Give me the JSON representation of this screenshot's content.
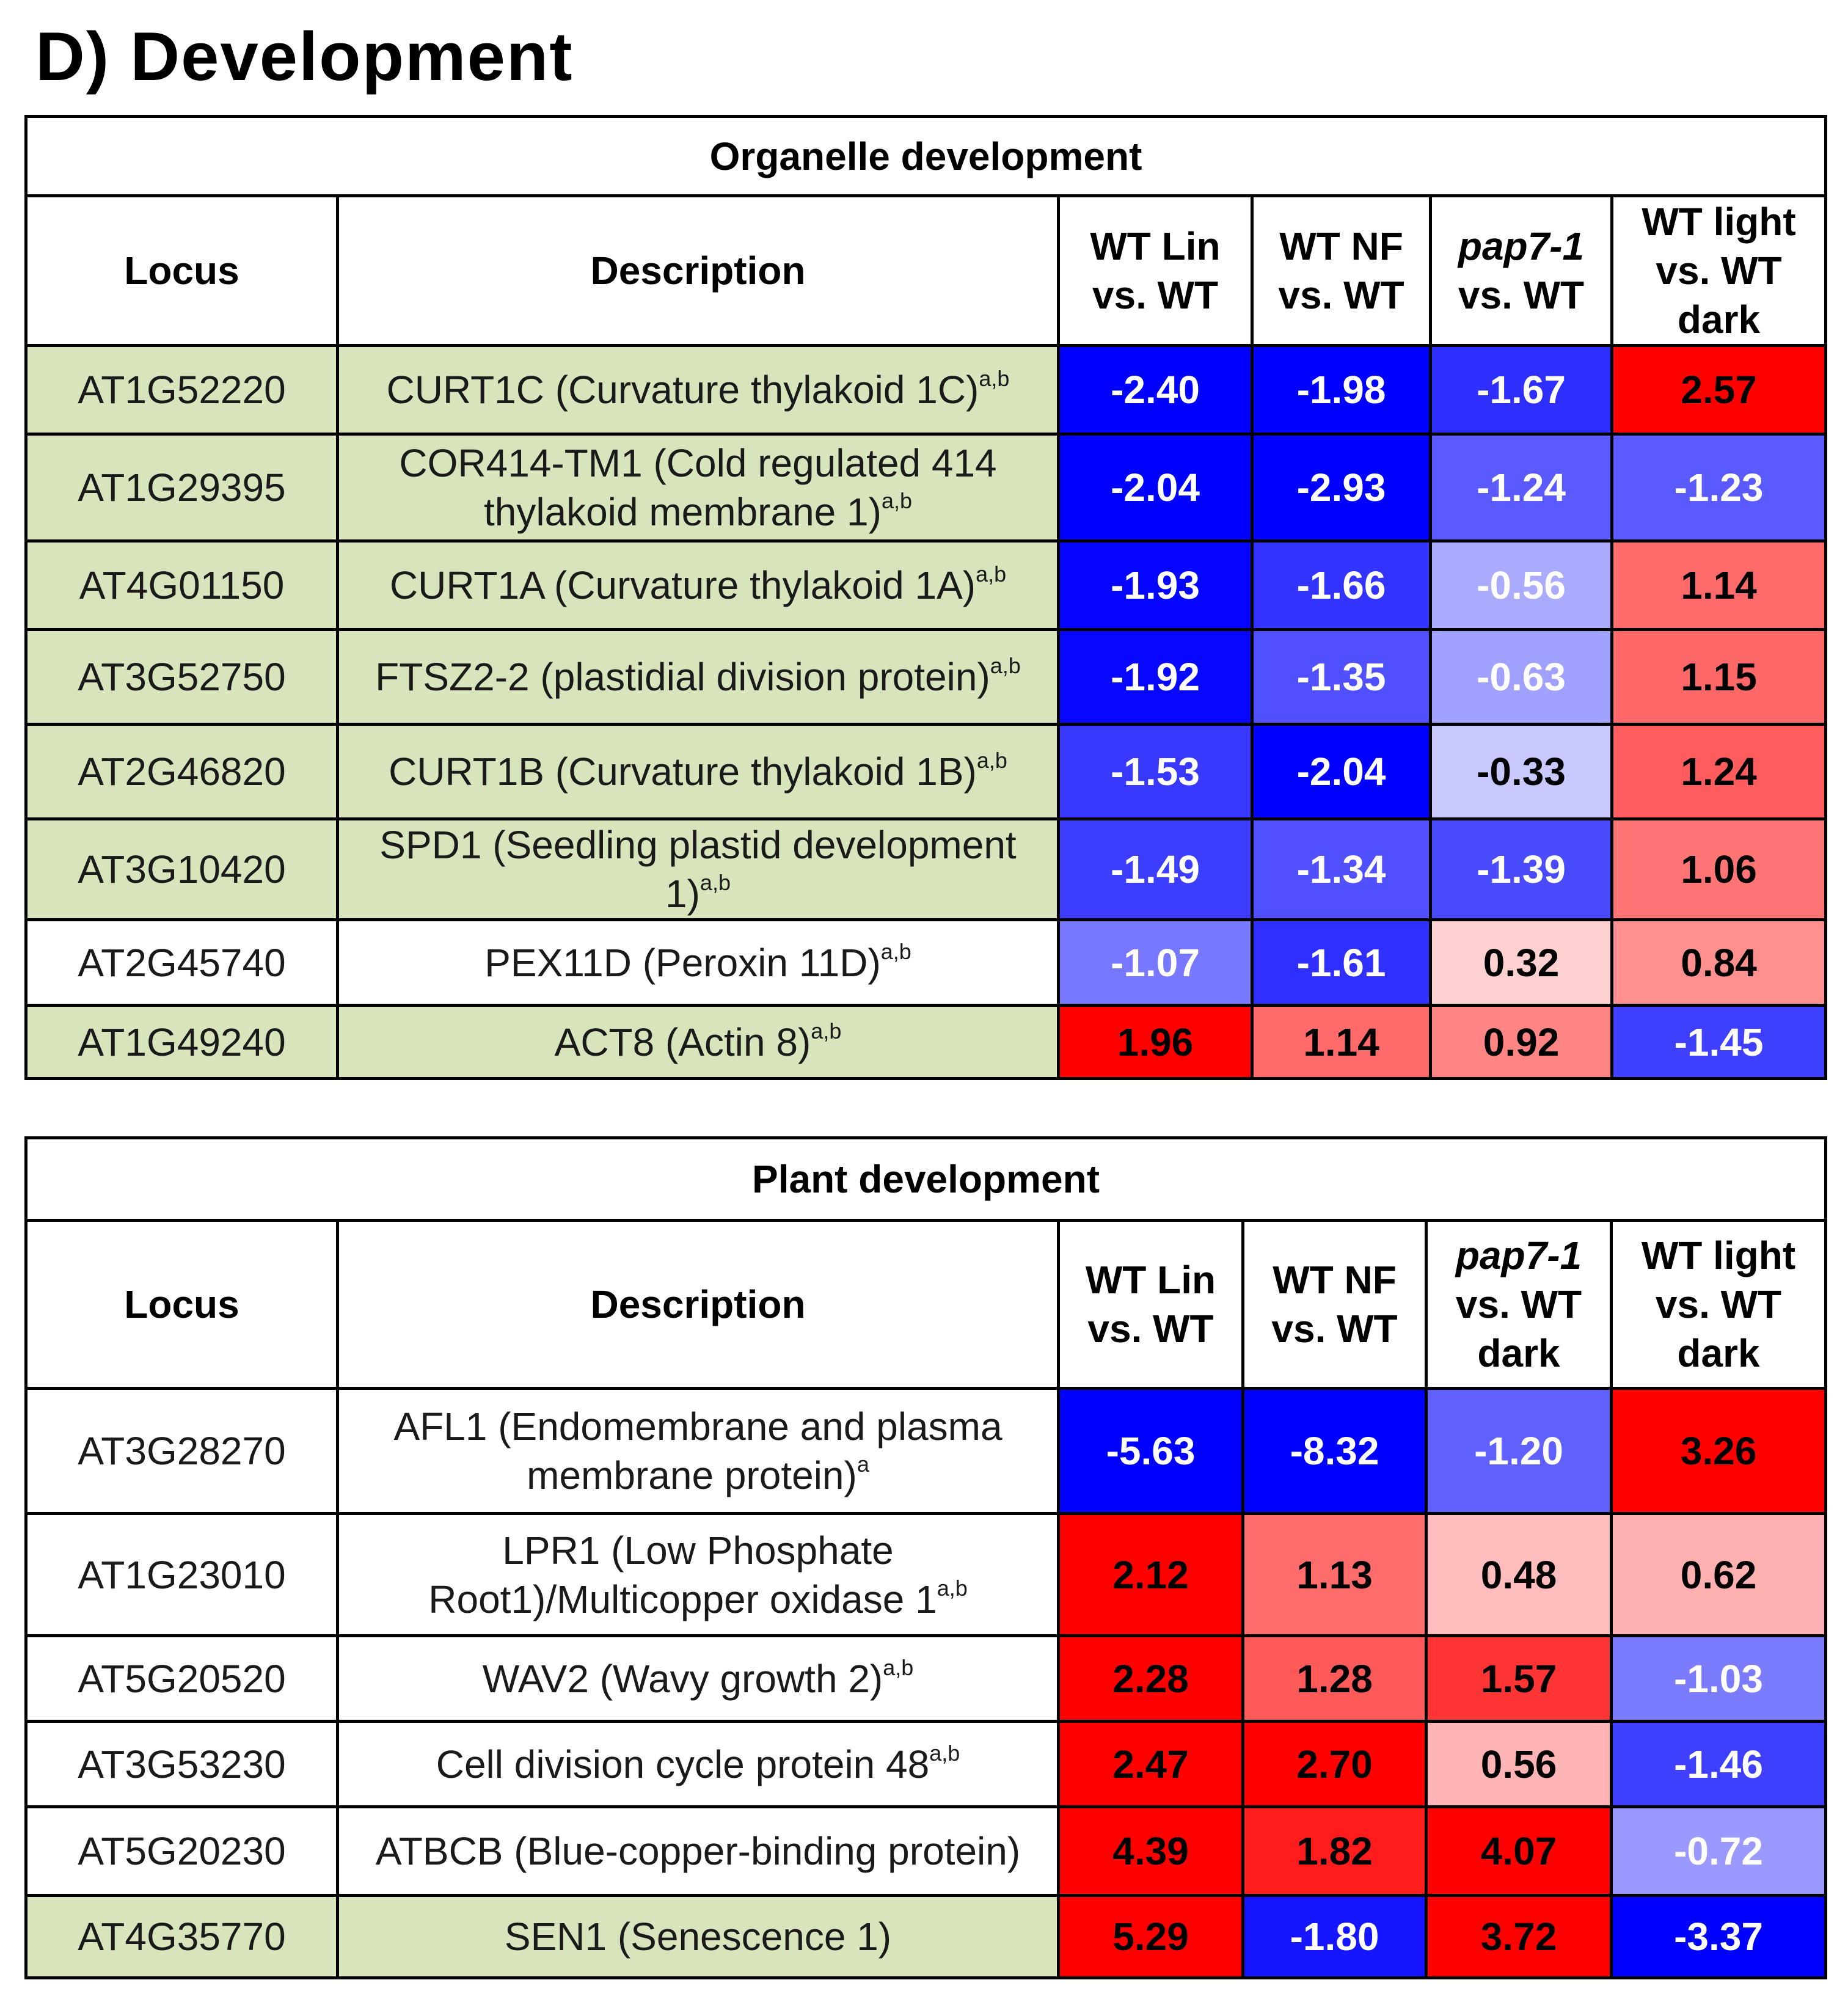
{
  "title": "D) Development",
  "headers": {
    "locus": "Locus",
    "description": "Description",
    "wt_lin": [
      "WT Lin",
      "vs. WT"
    ],
    "wt_nf": [
      "WT NF",
      "vs. WT"
    ],
    "pap7_organelle": [
      "pap7-1",
      "vs. WT"
    ],
    "pap7_plant": [
      "pap7-1",
      "vs. WT",
      "dark"
    ],
    "wt_light": [
      "WT light",
      "vs. WT",
      "dark"
    ]
  },
  "colors": {
    "green_row": "#d8e4bc",
    "white_row": "#ffffff",
    "deep_blue": "#0000ff",
    "deep_red": "#ff0000"
  },
  "tables": [
    {
      "id": "organelle",
      "title": "Organelle development",
      "rows": [
        {
          "locus": "AT1G52220",
          "desc": "CURT1C (Curvature thylakoid 1C)",
          "sup": "a,b",
          "bg": "#d8e4bc",
          "values": [
            {
              "text": "-2.40",
              "bg": "#0000ff",
              "fg": "#ffffff"
            },
            {
              "text": "-1.98",
              "bg": "#0000ff",
              "fg": "#ffffff"
            },
            {
              "text": "-1.67",
              "bg": "#2e2eff",
              "fg": "#ffffff"
            },
            {
              "text": "2.57",
              "bg": "#ff0000",
              "fg": "#000000"
            }
          ]
        },
        {
          "locus": "AT1G29395",
          "desc": "COR414-TM1 (Cold regulated 414 thylakoid membrane 1)",
          "sup": "a,b",
          "bg": "#d8e4bc",
          "values": [
            {
              "text": "-2.04",
              "bg": "#0000ff",
              "fg": "#ffffff"
            },
            {
              "text": "-2.93",
              "bg": "#0000ff",
              "fg": "#ffffff"
            },
            {
              "text": "-1.24",
              "bg": "#5a5aff",
              "fg": "#ffffff"
            },
            {
              "text": "-1.23",
              "bg": "#5a5aff",
              "fg": "#ffffff"
            }
          ]
        },
        {
          "locus": "AT4G01150",
          "desc": "CURT1A (Curvature thylakoid 1A)",
          "sup": "a,b",
          "bg": "#d8e4bc",
          "values": [
            {
              "text": "-1.93",
              "bg": "#0505ff",
              "fg": "#ffffff"
            },
            {
              "text": "-1.66",
              "bg": "#3333ff",
              "fg": "#ffffff"
            },
            {
              "text": "-0.56",
              "bg": "#aaaaff",
              "fg": "#ffffff"
            },
            {
              "text": "1.14",
              "bg": "#ff6a6a",
              "fg": "#000000"
            }
          ]
        },
        {
          "locus": "AT3G52750",
          "desc": "FTSZ2-2 (plastidial division protein)",
          "sup": "a,b",
          "bg": "#d8e4bc",
          "values": [
            {
              "text": "-1.92",
              "bg": "#0707ff",
              "fg": "#ffffff"
            },
            {
              "text": "-1.35",
              "bg": "#5050ff",
              "fg": "#ffffff"
            },
            {
              "text": "-0.63",
              "bg": "#a0a0ff",
              "fg": "#ffffff"
            },
            {
              "text": "1.15",
              "bg": "#ff6868",
              "fg": "#000000"
            }
          ]
        },
        {
          "locus": "AT2G46820",
          "desc": "CURT1B (Curvature thylakoid 1B)",
          "sup": "a,b",
          "bg": "#d8e4bc",
          "values": [
            {
              "text": "-1.53",
              "bg": "#3838ff",
              "fg": "#ffffff"
            },
            {
              "text": "-2.04",
              "bg": "#0000ff",
              "fg": "#ffffff"
            },
            {
              "text": "-0.33",
              "bg": "#c8c8ff",
              "fg": "#000000"
            },
            {
              "text": "1.24",
              "bg": "#ff5d5d",
              "fg": "#000000"
            }
          ]
        },
        {
          "locus": "AT3G10420",
          "desc": "SPD1 (Seedling plastid development 1)",
          "sup": "a,b",
          "bg": "#d8e4bc",
          "values": [
            {
              "text": "-1.49",
              "bg": "#3d3dff",
              "fg": "#ffffff"
            },
            {
              "text": "-1.34",
              "bg": "#5050ff",
              "fg": "#ffffff"
            },
            {
              "text": "-1.39",
              "bg": "#4a4aff",
              "fg": "#ffffff"
            },
            {
              "text": "1.06",
              "bg": "#ff7474",
              "fg": "#000000"
            }
          ]
        },
        {
          "locus": "AT2G45740",
          "desc": "PEX11D (Peroxin 11D)",
          "sup": "a,b",
          "bg": "#ffffff",
          "values": [
            {
              "text": "-1.07",
              "bg": "#7777ff",
              "fg": "#ffffff"
            },
            {
              "text": "-1.61",
              "bg": "#2f2fff",
              "fg": "#ffffff"
            },
            {
              "text": "0.32",
              "bg": "#ffd0d0",
              "fg": "#000000"
            },
            {
              "text": "0.84",
              "bg": "#ff9090",
              "fg": "#000000"
            }
          ]
        },
        {
          "locus": "AT1G49240",
          "desc": "ACT8 (Actin 8)",
          "sup": "a,b",
          "bg": "#d8e4bc",
          "values": [
            {
              "text": "1.96",
              "bg": "#ff0000",
              "fg": "#000000"
            },
            {
              "text": "1.14",
              "bg": "#ff6a6a",
              "fg": "#000000"
            },
            {
              "text": "0.92",
              "bg": "#ff8585",
              "fg": "#000000"
            },
            {
              "text": "-1.45",
              "bg": "#3f3fff",
              "fg": "#ffffff"
            }
          ]
        }
      ]
    },
    {
      "id": "plant",
      "title": "Plant development",
      "rows": [
        {
          "locus": "AT3G28270",
          "desc": "AFL1 (Endomembrane and plasma membrane protein)",
          "sup": "a",
          "bg": "#ffffff",
          "values": [
            {
              "text": "-5.63",
              "bg": "#0000ff",
              "fg": "#ffffff"
            },
            {
              "text": "-8.32",
              "bg": "#0000ff",
              "fg": "#ffffff"
            },
            {
              "text": "-1.20",
              "bg": "#6060ff",
              "fg": "#ffffff"
            },
            {
              "text": "3.26",
              "bg": "#ff0000",
              "fg": "#000000"
            }
          ]
        },
        {
          "locus": "AT1G23010",
          "desc": "LPR1 (Low Phosphate Root1)/Multicopper oxidase 1",
          "sup": "a,b",
          "bg": "#ffffff",
          "values": [
            {
              "text": "2.12",
              "bg": "#ff0000",
              "fg": "#000000"
            },
            {
              "text": "1.13",
              "bg": "#ff6c6c",
              "fg": "#000000"
            },
            {
              "text": "0.48",
              "bg": "#ffbdbd",
              "fg": "#000000"
            },
            {
              "text": "0.62",
              "bg": "#ffb0b0",
              "fg": "#000000"
            }
          ]
        },
        {
          "locus": "AT5G20520",
          "desc": "WAV2 (Wavy growth 2)",
          "sup": "a,b",
          "bg": "#ffffff",
          "values": [
            {
              "text": "2.28",
              "bg": "#ff0000",
              "fg": "#000000"
            },
            {
              "text": "1.28",
              "bg": "#ff5a5a",
              "fg": "#000000"
            },
            {
              "text": "1.57",
              "bg": "#ff3535",
              "fg": "#000000"
            },
            {
              "text": "-1.03",
              "bg": "#7b7bff",
              "fg": "#ffffff"
            }
          ]
        },
        {
          "locus": "AT3G53230",
          "desc": "Cell division cycle protein 48",
          "sup": "a,b",
          "bg": "#ffffff",
          "values": [
            {
              "text": "2.47",
              "bg": "#ff0000",
              "fg": "#000000"
            },
            {
              "text": "2.70",
              "bg": "#ff0000",
              "fg": "#000000"
            },
            {
              "text": "0.56",
              "bg": "#ffb5b5",
              "fg": "#000000"
            },
            {
              "text": "-1.46",
              "bg": "#3f3fff",
              "fg": "#ffffff"
            }
          ]
        },
        {
          "locus": "AT5G20230",
          "desc": "ATBCB (Blue-copper-binding protein)",
          "sup": "",
          "bg": "#ffffff",
          "values": [
            {
              "text": "4.39",
              "bg": "#ff0000",
              "fg": "#000000"
            },
            {
              "text": "1.82",
              "bg": "#ff1c1c",
              "fg": "#000000"
            },
            {
              "text": "4.07",
              "bg": "#ff0000",
              "fg": "#000000"
            },
            {
              "text": "-0.72",
              "bg": "#9999ff",
              "fg": "#ffffff"
            }
          ]
        },
        {
          "locus": "AT4G35770",
          "desc": "SEN1 (Senescence 1)",
          "sup": "",
          "bg": "#d8e4bc",
          "values": [
            {
              "text": "5.29",
              "bg": "#ff0000",
              "fg": "#000000"
            },
            {
              "text": "-1.80",
              "bg": "#1515ff",
              "fg": "#ffffff"
            },
            {
              "text": "3.72",
              "bg": "#ff0000",
              "fg": "#000000"
            },
            {
              "text": "-3.37",
              "bg": "#0000ff",
              "fg": "#ffffff"
            }
          ]
        }
      ]
    }
  ]
}
